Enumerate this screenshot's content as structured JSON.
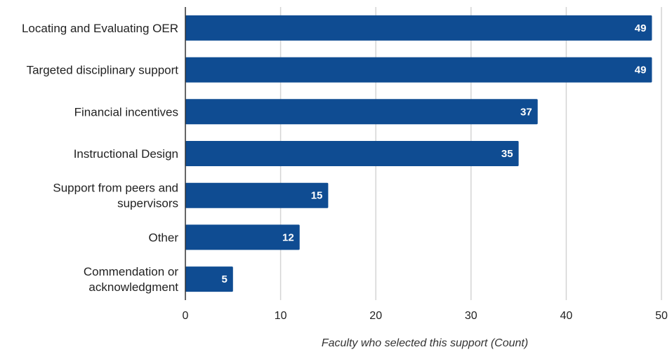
{
  "chart_data": {
    "type": "bar",
    "orientation": "horizontal",
    "categories": [
      "Locating and Evaluating OER",
      "Targeted disciplinary support",
      "Financial incentives",
      "Instructional Design",
      "Support from peers and supervisors",
      "Other",
      "Commendation or acknowledgment"
    ],
    "category_lines": [
      [
        "Locating and Evaluating OER"
      ],
      [
        "Targeted disciplinary support"
      ],
      [
        "Financial incentives"
      ],
      [
        "Instructional Design"
      ],
      [
        "Support from peers and",
        "supervisors"
      ],
      [
        "Other"
      ],
      [
        "Commendation or",
        "acknowledgment"
      ]
    ],
    "values": [
      49,
      49,
      37,
      35,
      15,
      12,
      5
    ],
    "xlabel": "Faculty who selected this support (Count)",
    "ylabel": "",
    "xlim": [
      0,
      50
    ],
    "ticks": [
      0,
      10,
      20,
      30,
      40,
      50
    ],
    "grid": true,
    "data_labels": true,
    "bar_color": "#0f4c92"
  }
}
